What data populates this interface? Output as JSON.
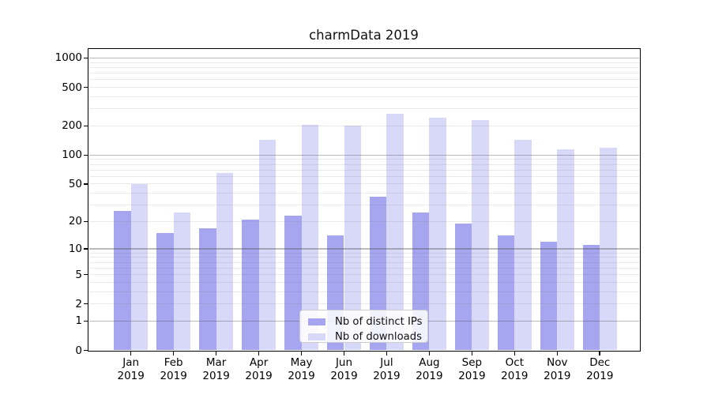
{
  "chart_data": {
    "type": "bar",
    "title": "charmData 2019",
    "categories": [
      "Jan 2019",
      "Feb 2019",
      "Mar 2019",
      "Apr 2019",
      "May 2019",
      "Jun 2019",
      "Jul 2019",
      "Aug 2019",
      "Sep 2019",
      "Oct 2019",
      "Nov 2019",
      "Dec 2019"
    ],
    "series": [
      {
        "name": "Nb of distinct IPs",
        "color": "#a5a5f0",
        "values": [
          26,
          15,
          17,
          21,
          23,
          14,
          37,
          25,
          19,
          14,
          12,
          11
        ]
      },
      {
        "name": "Nb of downloads",
        "color": "#d8d8f8",
        "values": [
          50,
          25,
          65,
          145,
          205,
          200,
          265,
          245,
          230,
          145,
          115,
          120
        ]
      }
    ],
    "yscale": "log1p",
    "y_ticks": [
      0,
      1,
      2,
      5,
      10,
      20,
      50,
      100,
      200,
      500,
      1000
    ],
    "ylim": [
      0,
      1250
    ],
    "xlabel": "",
    "ylabel": "",
    "grid": true,
    "legend_position": "lower center"
  }
}
